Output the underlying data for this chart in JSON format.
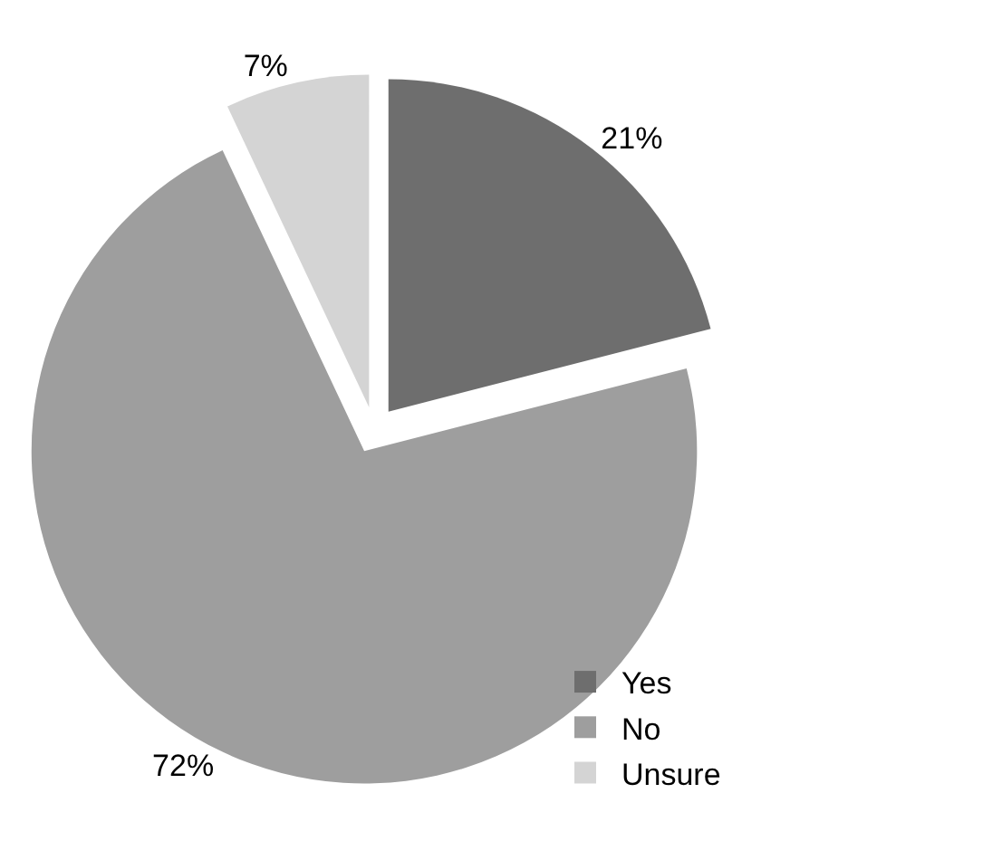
{
  "chart_data": {
    "type": "pie",
    "categories": [
      "Yes",
      "No",
      "Unsure"
    ],
    "values": [
      21,
      72,
      7
    ],
    "value_labels": [
      "21%",
      "72%",
      "7%"
    ],
    "colors": [
      "#6e6e6e",
      "#9e9e9e",
      "#d4d4d4"
    ],
    "legend": "bottom right"
  }
}
